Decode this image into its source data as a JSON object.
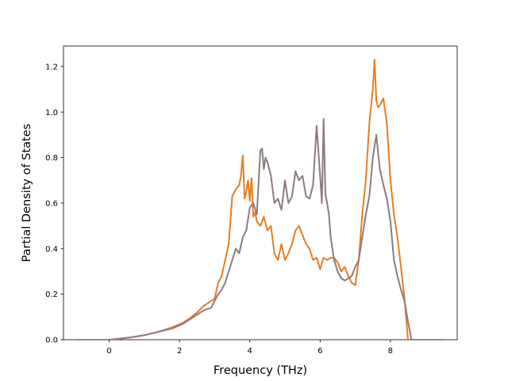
{
  "chart_data": {
    "type": "line",
    "title": "",
    "xlabel": "Frequency (THz)",
    "ylabel": "Partial Density of States",
    "xlim": [
      -1.3,
      9.9
    ],
    "ylim": [
      0.0,
      1.29
    ],
    "xticks": [
      0,
      2,
      4,
      6,
      8
    ],
    "yticks": [
      0.0,
      0.2,
      0.4,
      0.6,
      0.8,
      1.0,
      1.2
    ],
    "xtick_labels": [
      "0",
      "2",
      "4",
      "6",
      "8"
    ],
    "ytick_labels": [
      "0.0",
      "0.2",
      "0.4",
      "0.6",
      "0.8",
      "1.0",
      "1.2"
    ],
    "grid": false,
    "legend": "none",
    "series": [
      {
        "color": "#e67e22",
        "x": [
          -0.9,
          0.0,
          0.3,
          0.6,
          1.0,
          1.4,
          1.8,
          2.1,
          2.3,
          2.5,
          2.7,
          2.9,
          3.0,
          3.1,
          3.2,
          3.3,
          3.4,
          3.5,
          3.6,
          3.7,
          3.75,
          3.8,
          3.85,
          3.9,
          3.95,
          4.0,
          4.05,
          4.1,
          4.15,
          4.2,
          4.3,
          4.4,
          4.5,
          4.6,
          4.7,
          4.8,
          4.9,
          5.0,
          5.1,
          5.2,
          5.3,
          5.4,
          5.5,
          5.6,
          5.7,
          5.8,
          5.9,
          6.0,
          6.1,
          6.2,
          6.3,
          6.4,
          6.5,
          6.6,
          6.7,
          6.8,
          6.9,
          7.0,
          7.1,
          7.2,
          7.3,
          7.4,
          7.5,
          7.55,
          7.6,
          7.65,
          7.7,
          7.8,
          7.9,
          8.0,
          8.1,
          8.2,
          8.3,
          8.4,
          8.5,
          8.6,
          9.5
        ],
        "y": [
          0.0,
          0.0,
          0.005,
          0.01,
          0.02,
          0.035,
          0.055,
          0.075,
          0.095,
          0.12,
          0.15,
          0.17,
          0.18,
          0.25,
          0.28,
          0.35,
          0.42,
          0.63,
          0.66,
          0.68,
          0.72,
          0.81,
          0.62,
          0.65,
          0.7,
          0.61,
          0.71,
          0.54,
          0.56,
          0.52,
          0.5,
          0.54,
          0.48,
          0.5,
          0.38,
          0.35,
          0.42,
          0.35,
          0.38,
          0.42,
          0.48,
          0.5,
          0.46,
          0.42,
          0.4,
          0.35,
          0.36,
          0.31,
          0.36,
          0.35,
          0.36,
          0.36,
          0.34,
          0.3,
          0.32,
          0.28,
          0.25,
          0.24,
          0.35,
          0.55,
          0.7,
          0.95,
          1.1,
          1.23,
          1.05,
          1.02,
          1.03,
          1.06,
          0.95,
          0.7,
          0.55,
          0.45,
          0.32,
          0.18,
          0.0,
          0.0,
          0.0
        ]
      },
      {
        "color": "#8c7b82",
        "x": [
          -0.9,
          0.0,
          0.3,
          0.6,
          1.0,
          1.4,
          1.8,
          2.1,
          2.3,
          2.5,
          2.7,
          2.9,
          3.0,
          3.1,
          3.2,
          3.3,
          3.4,
          3.5,
          3.6,
          3.7,
          3.8,
          3.9,
          4.0,
          4.1,
          4.2,
          4.3,
          4.35,
          4.4,
          4.45,
          4.5,
          4.6,
          4.7,
          4.8,
          4.9,
          5.0,
          5.1,
          5.2,
          5.3,
          5.4,
          5.5,
          5.6,
          5.7,
          5.8,
          5.9,
          6.0,
          6.05,
          6.1,
          6.15,
          6.2,
          6.25,
          6.3,
          6.4,
          6.5,
          6.6,
          6.7,
          6.8,
          6.9,
          7.0,
          7.1,
          7.2,
          7.3,
          7.4,
          7.5,
          7.6,
          7.65,
          7.7,
          7.8,
          7.9,
          8.0,
          8.1,
          8.2,
          8.3,
          8.4,
          8.5,
          8.6,
          9.5
        ],
        "y": [
          0.0,
          0.0,
          0.005,
          0.01,
          0.02,
          0.035,
          0.05,
          0.07,
          0.09,
          0.11,
          0.13,
          0.14,
          0.17,
          0.2,
          0.22,
          0.25,
          0.3,
          0.35,
          0.4,
          0.38,
          0.45,
          0.48,
          0.58,
          0.6,
          0.55,
          0.83,
          0.84,
          0.75,
          0.8,
          0.78,
          0.72,
          0.6,
          0.62,
          0.57,
          0.7,
          0.6,
          0.63,
          0.74,
          0.7,
          0.72,
          0.63,
          0.62,
          0.68,
          0.94,
          0.72,
          0.6,
          0.97,
          0.64,
          0.6,
          0.55,
          0.45,
          0.35,
          0.3,
          0.27,
          0.26,
          0.27,
          0.28,
          0.32,
          0.35,
          0.45,
          0.55,
          0.63,
          0.8,
          0.9,
          0.82,
          0.75,
          0.68,
          0.62,
          0.52,
          0.35,
          0.28,
          0.22,
          0.17,
          0.08,
          0.0,
          0.0
        ]
      }
    ]
  }
}
